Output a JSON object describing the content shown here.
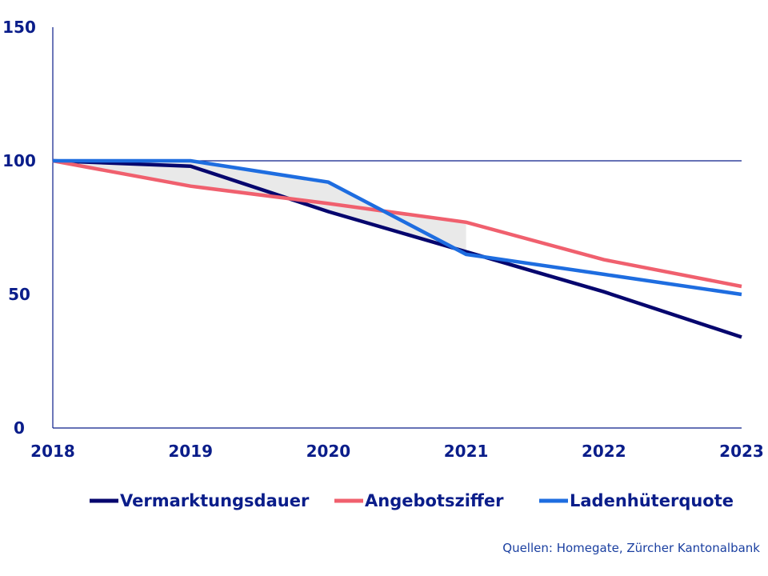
{
  "chart_data": {
    "type": "line",
    "x": [
      "2018",
      "2019",
      "2020",
      "2021",
      "2022",
      "2023"
    ],
    "series": [
      {
        "name": "Vermarktungsdauer",
        "color": "#06066e",
        "values": [
          100,
          98,
          81,
          66,
          51,
          34
        ]
      },
      {
        "name": "Angebotsziffer",
        "color": "#f0606e",
        "values": [
          100,
          90.5,
          84,
          77,
          63,
          53
        ]
      },
      {
        "name": "Ladenhüterquote",
        "color": "#1e6de0",
        "values": [
          100,
          100,
          92,
          65,
          57.5,
          50
        ]
      }
    ],
    "ylim": [
      0,
      150
    ],
    "yticks": [
      "0",
      "50",
      "100",
      "150"
    ],
    "reference_line": 100,
    "shaded_area_between": [
      "Vermarktungsdauer",
      "Angebotsziffer",
      "Ladenhüterquote"
    ],
    "shade_color": "#e9e9e9",
    "axis_color": "#0a1d8a",
    "title": "",
    "xlabel": "",
    "ylabel": "",
    "legend_position": "bottom",
    "source": "Quellen: Homegate, Zürcher Kantonalbank"
  }
}
